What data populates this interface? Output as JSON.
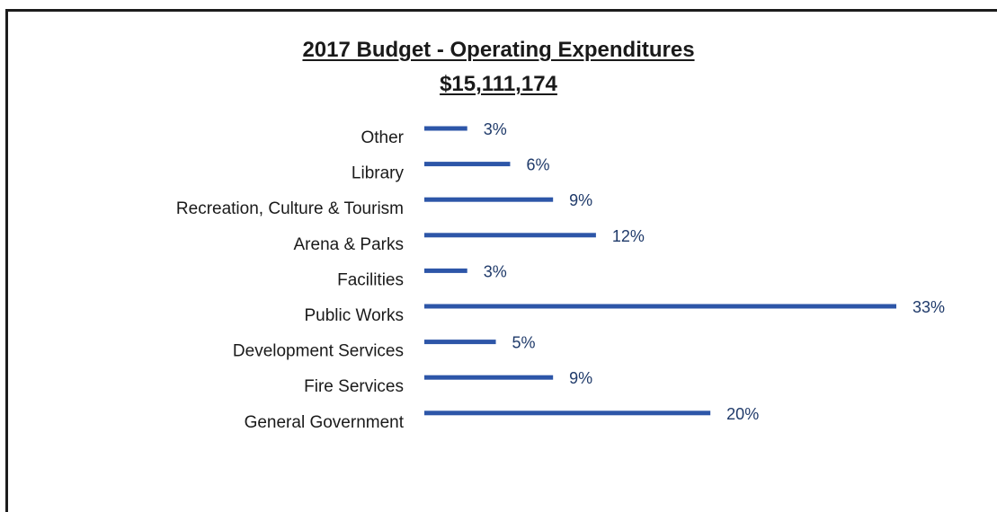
{
  "chart_data": {
    "type": "bar",
    "orientation": "horizontal",
    "title": "2017 Budget - Operating Expenditures",
    "subtitle": "$15,111,174",
    "categories": [
      "Other",
      "Library",
      "Recreation, Culture & Tourism",
      "Arena & Parks",
      "Facilities",
      "Public Works",
      "Development Services",
      "Fire Services",
      "General Government"
    ],
    "values": [
      3,
      6,
      9,
      12,
      3,
      33,
      5,
      9,
      20
    ],
    "value_labels": [
      "3%",
      "6%",
      "9%",
      "12%",
      "3%",
      "33%",
      "5%",
      "9%",
      "20%"
    ],
    "bar_color": "#2d56a8",
    "grid": false,
    "legend": "none"
  }
}
